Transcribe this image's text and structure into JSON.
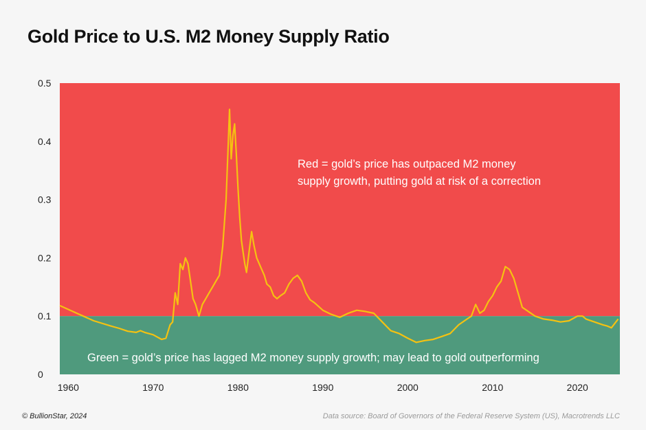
{
  "chart_data": {
    "type": "line",
    "title": "Gold Price to U.S. M2 Money Supply Ratio",
    "xlabel": "",
    "ylabel": "",
    "xlim": [
      1959,
      2025
    ],
    "ylim": [
      0,
      0.5
    ],
    "x_ticks": [
      1960,
      1970,
      1980,
      1990,
      2000,
      2010,
      2020
    ],
    "y_ticks": [
      {
        "value": 0,
        "label": "0"
      },
      {
        "value": 0.1,
        "label": "0.1"
      },
      {
        "value": 0.2,
        "label": "0.2"
      },
      {
        "value": 0.3,
        "label": "0.3"
      },
      {
        "value": 0.4,
        "label": "0.4"
      },
      {
        "value": 0.5,
        "label": "0.5"
      }
    ],
    "threshold": 0.1,
    "grid": false,
    "colors": {
      "above_threshold": "#f14b4b",
      "below_threshold": "#4f9a7d",
      "line": "#f5c211"
    },
    "annotations": {
      "red_line1": "Red = gold’s price has outpaced M2 money",
      "red_line2": "supply growth, putting gold at risk of a correction",
      "green": "Green = gold’s price has lagged M2 money supply growth; may lead to gold outperforming"
    },
    "series": [
      {
        "x": [
          1959,
          1961,
          1963,
          1965,
          1966,
          1967,
          1968,
          1968.5,
          1969,
          1970,
          1971,
          1971.5,
          1972,
          1972.3,
          1972.6,
          1972.9,
          1973.2,
          1973.5,
          1973.8,
          1974.1,
          1974.4,
          1974.7,
          1975,
          1975.4,
          1975.8,
          1976.2,
          1976.6,
          1977,
          1977.4,
          1977.8,
          1978.2,
          1978.6,
          1979,
          1979.2,
          1979.4,
          1979.6,
          1979.8,
          1980,
          1980.2,
          1980.4,
          1980.6,
          1980.8,
          1981,
          1981.3,
          1981.6,
          1981.9,
          1982.2,
          1982.5,
          1982.8,
          1983.1,
          1983.4,
          1983.8,
          1984.2,
          1984.6,
          1985,
          1985.5,
          1986,
          1986.5,
          1987,
          1987.5,
          1988,
          1988.5,
          1989,
          1990,
          1991,
          1992,
          1993,
          1994,
          1995,
          1996,
          1997,
          1998,
          1999,
          2000,
          2001,
          2002,
          2003,
          2004,
          2005,
          2006,
          2007,
          2007.5,
          2008,
          2008.5,
          2009,
          2009.5,
          2010,
          2010.5,
          2011,
          2011.5,
          2012,
          2012.5,
          2013,
          2013.5,
          2014,
          2015,
          2016,
          2017,
          2018,
          2019,
          2020,
          2020.6,
          2021,
          2022,
          2023,
          2023.5,
          2024,
          2024.8
        ],
        "values": [
          0.118,
          0.105,
          0.092,
          0.083,
          0.079,
          0.074,
          0.072,
          0.075,
          0.072,
          0.068,
          0.06,
          0.062,
          0.085,
          0.09,
          0.14,
          0.12,
          0.19,
          0.18,
          0.2,
          0.19,
          0.16,
          0.13,
          0.12,
          0.1,
          0.12,
          0.13,
          0.14,
          0.15,
          0.16,
          0.17,
          0.22,
          0.3,
          0.455,
          0.37,
          0.41,
          0.43,
          0.38,
          0.32,
          0.27,
          0.23,
          0.21,
          0.19,
          0.175,
          0.21,
          0.245,
          0.22,
          0.2,
          0.19,
          0.18,
          0.17,
          0.155,
          0.15,
          0.135,
          0.13,
          0.135,
          0.14,
          0.155,
          0.165,
          0.17,
          0.16,
          0.14,
          0.128,
          0.123,
          0.11,
          0.103,
          0.098,
          0.105,
          0.11,
          0.108,
          0.105,
          0.09,
          0.075,
          0.07,
          0.062,
          0.055,
          0.058,
          0.06,
          0.065,
          0.07,
          0.085,
          0.095,
          0.1,
          0.12,
          0.105,
          0.11,
          0.125,
          0.135,
          0.15,
          0.16,
          0.185,
          0.18,
          0.165,
          0.14,
          0.115,
          0.11,
          0.1,
          0.095,
          0.093,
          0.09,
          0.092,
          0.1,
          0.1,
          0.095,
          0.09,
          0.085,
          0.083,
          0.08,
          0.095
        ]
      }
    ]
  },
  "footer": {
    "credit": "© BullionStar, 2024",
    "source": "Data source: Board of Governors of the Federal Reserve System (US), Macrotrends LLC"
  }
}
